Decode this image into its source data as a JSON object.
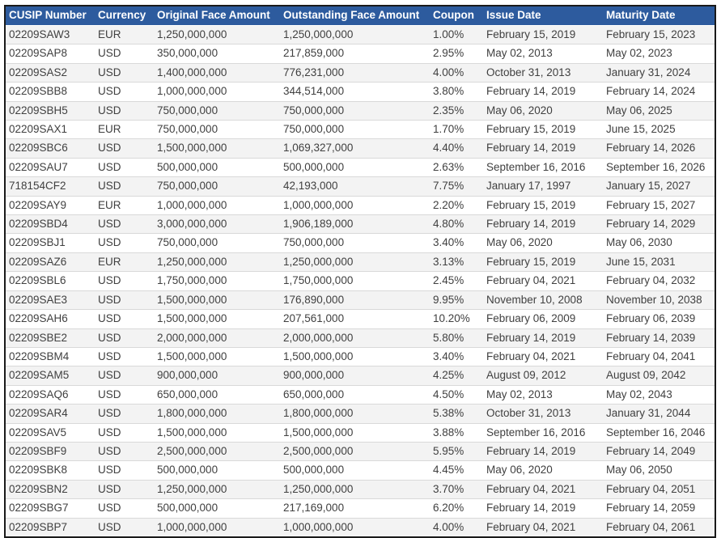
{
  "table": {
    "colors": {
      "header_bg": "#2d5b9e",
      "header_text": "#ffffff",
      "row_bg": "#ffffff",
      "row_alt_bg": "#f3f3f3",
      "border": "#1a1a1a",
      "row_divider": "#d9d9d9",
      "cell_text": "#404040"
    },
    "columns": [
      {
        "key": "cusip",
        "label": "CUSIP Number"
      },
      {
        "key": "currency",
        "label": "Currency"
      },
      {
        "key": "original_face",
        "label": "Original Face Amount"
      },
      {
        "key": "outstanding_face",
        "label": "Outstanding Face Amount"
      },
      {
        "key": "coupon",
        "label": "Coupon"
      },
      {
        "key": "issue_date",
        "label": "Issue Date"
      },
      {
        "key": "maturity_date",
        "label": "Maturity Date"
      }
    ],
    "rows": [
      {
        "cusip": "02209SAW3",
        "currency": "EUR",
        "original_face": "1,250,000,000",
        "outstanding_face": "1,250,000,000",
        "coupon": "1.00%",
        "issue_date": "February 15, 2019",
        "maturity_date": "February 15, 2023"
      },
      {
        "cusip": "02209SAP8",
        "currency": "USD",
        "original_face": "350,000,000",
        "outstanding_face": "217,859,000",
        "coupon": "2.95%",
        "issue_date": "May 02, 2013",
        "maturity_date": "May 02, 2023"
      },
      {
        "cusip": "02209SAS2",
        "currency": "USD",
        "original_face": "1,400,000,000",
        "outstanding_face": "776,231,000",
        "coupon": "4.00%",
        "issue_date": "October 31, 2013",
        "maturity_date": "January 31, 2024"
      },
      {
        "cusip": "02209SBB8",
        "currency": "USD",
        "original_face": "1,000,000,000",
        "outstanding_face": "344,514,000",
        "coupon": "3.80%",
        "issue_date": "February 14, 2019",
        "maturity_date": "February 14, 2024"
      },
      {
        "cusip": "02209SBH5",
        "currency": "USD",
        "original_face": "750,000,000",
        "outstanding_face": "750,000,000",
        "coupon": "2.35%",
        "issue_date": "May 06, 2020",
        "maturity_date": "May 06, 2025"
      },
      {
        "cusip": "02209SAX1",
        "currency": "EUR",
        "original_face": "750,000,000",
        "outstanding_face": "750,000,000",
        "coupon": "1.70%",
        "issue_date": "February 15, 2019",
        "maturity_date": "June 15, 2025"
      },
      {
        "cusip": "02209SBC6",
        "currency": "USD",
        "original_face": "1,500,000,000",
        "outstanding_face": "1,069,327,000",
        "coupon": "4.40%",
        "issue_date": "February 14, 2019",
        "maturity_date": "February 14, 2026"
      },
      {
        "cusip": "02209SAU7",
        "currency": "USD",
        "original_face": "500,000,000",
        "outstanding_face": "500,000,000",
        "coupon": "2.63%",
        "issue_date": "September 16, 2016",
        "maturity_date": "September 16, 2026"
      },
      {
        "cusip": "718154CF2",
        "currency": "USD",
        "original_face": "750,000,000",
        "outstanding_face": "42,193,000",
        "coupon": "7.75%",
        "issue_date": "January 17, 1997",
        "maturity_date": "January 15, 2027"
      },
      {
        "cusip": "02209SAY9",
        "currency": "EUR",
        "original_face": "1,000,000,000",
        "outstanding_face": "1,000,000,000",
        "coupon": "2.20%",
        "issue_date": "February 15, 2019",
        "maturity_date": "February 15, 2027"
      },
      {
        "cusip": "02209SBD4",
        "currency": "USD",
        "original_face": "3,000,000,000",
        "outstanding_face": "1,906,189,000",
        "coupon": "4.80%",
        "issue_date": "February 14, 2019",
        "maturity_date": "February 14, 2029"
      },
      {
        "cusip": "02209SBJ1",
        "currency": "USD",
        "original_face": "750,000,000",
        "outstanding_face": "750,000,000",
        "coupon": "3.40%",
        "issue_date": "May 06, 2020",
        "maturity_date": "May 06, 2030"
      },
      {
        "cusip": "02209SAZ6",
        "currency": "EUR",
        "original_face": "1,250,000,000",
        "outstanding_face": "1,250,000,000",
        "coupon": "3.13%",
        "issue_date": "February 15, 2019",
        "maturity_date": "June 15, 2031"
      },
      {
        "cusip": "02209SBL6",
        "currency": "USD",
        "original_face": "1,750,000,000",
        "outstanding_face": "1,750,000,000",
        "coupon": "2.45%",
        "issue_date": "February 04, 2021",
        "maturity_date": "February 04, 2032"
      },
      {
        "cusip": "02209SAE3",
        "currency": "USD",
        "original_face": "1,500,000,000",
        "outstanding_face": "176,890,000",
        "coupon": "9.95%",
        "issue_date": "November 10, 2008",
        "maturity_date": "November 10, 2038"
      },
      {
        "cusip": "02209SAH6",
        "currency": "USD",
        "original_face": "1,500,000,000",
        "outstanding_face": "207,561,000",
        "coupon": "10.20%",
        "issue_date": "February 06, 2009",
        "maturity_date": "February 06, 2039"
      },
      {
        "cusip": "02209SBE2",
        "currency": "USD",
        "original_face": "2,000,000,000",
        "outstanding_face": "2,000,000,000",
        "coupon": "5.80%",
        "issue_date": "February 14, 2019",
        "maturity_date": "February 14, 2039"
      },
      {
        "cusip": "02209SBM4",
        "currency": "USD",
        "original_face": "1,500,000,000",
        "outstanding_face": "1,500,000,000",
        "coupon": "3.40%",
        "issue_date": "February 04, 2021",
        "maturity_date": "February 04, 2041"
      },
      {
        "cusip": "02209SAM5",
        "currency": "USD",
        "original_face": "900,000,000",
        "outstanding_face": "900,000,000",
        "coupon": "4.25%",
        "issue_date": "August 09, 2012",
        "maturity_date": "August 09, 2042"
      },
      {
        "cusip": "02209SAQ6",
        "currency": "USD",
        "original_face": "650,000,000",
        "outstanding_face": "650,000,000",
        "coupon": "4.50%",
        "issue_date": "May 02, 2013",
        "maturity_date": "May 02, 2043"
      },
      {
        "cusip": "02209SAR4",
        "currency": "USD",
        "original_face": "1,800,000,000",
        "outstanding_face": "1,800,000,000",
        "coupon": "5.38%",
        "issue_date": "October 31, 2013",
        "maturity_date": "January 31, 2044"
      },
      {
        "cusip": "02209SAV5",
        "currency": "USD",
        "original_face": "1,500,000,000",
        "outstanding_face": "1,500,000,000",
        "coupon": "3.88%",
        "issue_date": "September 16, 2016",
        "maturity_date": "September 16, 2046"
      },
      {
        "cusip": "02209SBF9",
        "currency": "USD",
        "original_face": "2,500,000,000",
        "outstanding_face": "2,500,000,000",
        "coupon": "5.95%",
        "issue_date": "February 14, 2019",
        "maturity_date": "February 14, 2049"
      },
      {
        "cusip": "02209SBK8",
        "currency": "USD",
        "original_face": "500,000,000",
        "outstanding_face": "500,000,000",
        "coupon": "4.45%",
        "issue_date": "May 06, 2020",
        "maturity_date": "May 06, 2050"
      },
      {
        "cusip": "02209SBN2",
        "currency": "USD",
        "original_face": "1,250,000,000",
        "outstanding_face": "1,250,000,000",
        "coupon": "3.70%",
        "issue_date": "February 04, 2021",
        "maturity_date": "February 04, 2051"
      },
      {
        "cusip": "02209SBG7",
        "currency": "USD",
        "original_face": "500,000,000",
        "outstanding_face": "217,169,000",
        "coupon": "6.20%",
        "issue_date": "February 14, 2019",
        "maturity_date": "February 14, 2059"
      },
      {
        "cusip": "02209SBP7",
        "currency": "USD",
        "original_face": "1,000,000,000",
        "outstanding_face": "1,000,000,000",
        "coupon": "4.00%",
        "issue_date": "February 04, 2021",
        "maturity_date": "February 04, 2061"
      }
    ]
  }
}
